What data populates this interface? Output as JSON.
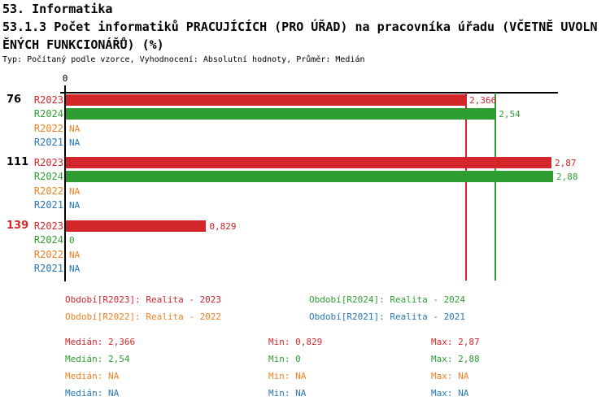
{
  "header": {
    "title_line1": "53. Informatika",
    "title_line2": "53.1.3 Počet informatiků PRACUJÍCÍCH (PRO ÚŘAD) na pracovníka úřadu (VČETNĚ UVOLN",
    "title_line3": "ĚNÝCH FUNKCIONÁŘŮ) (%)",
    "meta_line": "Typ: Počítaný podle vzorce, Vyhodnocení: Absolutní hodnoty, Průměr: Medián"
  },
  "colors": {
    "R2023": "#d2262b",
    "R2024": "#2f9e32",
    "R2022": "#ef8122",
    "R2021": "#2577b5",
    "axis": "#000000",
    "alert_group": "#d2262b",
    "normal_group": "#000000"
  },
  "chart_data": {
    "type": "bar",
    "orientation": "horizontal",
    "title": "53.1.3 Počet informatiků PRACUJÍCÍCH (PRO ÚŘAD) na pracovníka úřadu (VČETNĚ UVOLNĚNÝCH FUNKCIONÁŘŮ) (%)",
    "axis": {
      "origin_label": "0",
      "xlim": [
        0,
        2.91
      ]
    },
    "series_order": [
      "R2023",
      "R2024",
      "R2022",
      "R2021"
    ],
    "groups": [
      {
        "label": "76",
        "alert": false,
        "rows": [
          {
            "series": "R2023",
            "value": 2.366,
            "display": "2,366"
          },
          {
            "series": "R2024",
            "value": 2.54,
            "display": "2,54"
          },
          {
            "series": "R2022",
            "value": null,
            "display": "NA"
          },
          {
            "series": "R2021",
            "value": null,
            "display": "NA"
          }
        ]
      },
      {
        "label": "111",
        "alert": false,
        "rows": [
          {
            "series": "R2023",
            "value": 2.87,
            "display": "2,87"
          },
          {
            "series": "R2024",
            "value": 2.88,
            "display": "2,88"
          },
          {
            "series": "R2022",
            "value": null,
            "display": "NA"
          },
          {
            "series": "R2021",
            "value": null,
            "display": "NA"
          }
        ]
      },
      {
        "label": "139",
        "alert": true,
        "rows": [
          {
            "series": "R2023",
            "value": 0.829,
            "display": "0,829"
          },
          {
            "series": "R2024",
            "value": 0,
            "display": "0"
          },
          {
            "series": "R2022",
            "value": null,
            "display": "NA"
          },
          {
            "series": "R2021",
            "value": null,
            "display": "NA"
          }
        ]
      }
    ],
    "reference_lines": [
      {
        "series": "R2023",
        "value": 2.366
      },
      {
        "series": "R2024",
        "value": 2.54
      }
    ]
  },
  "legend": {
    "items": [
      {
        "series": "R2023",
        "label": "Období[R2023]: Realita - 2023"
      },
      {
        "series": "R2024",
        "label": "Období[R2024]: Realita - 2024"
      },
      {
        "series": "R2022",
        "label": "Období[R2022]: Realita - 2022"
      },
      {
        "series": "R2021",
        "label": "Období[R2021]: Realita - 2021"
      }
    ]
  },
  "stats": {
    "rows": [
      {
        "series": "R2023",
        "median": "Medián: 2,366",
        "min": "Min: 0,829",
        "max": "Max: 2,87"
      },
      {
        "series": "R2024",
        "median": "Medián: 2,54",
        "min": "Min: 0",
        "max": "Max: 2,88"
      },
      {
        "series": "R2022",
        "median": "Medián: NA",
        "min": "Min: NA",
        "max": "Max: NA"
      },
      {
        "series": "R2021",
        "median": "Medián: NA",
        "min": "Min: NA",
        "max": "Max: NA"
      }
    ]
  }
}
